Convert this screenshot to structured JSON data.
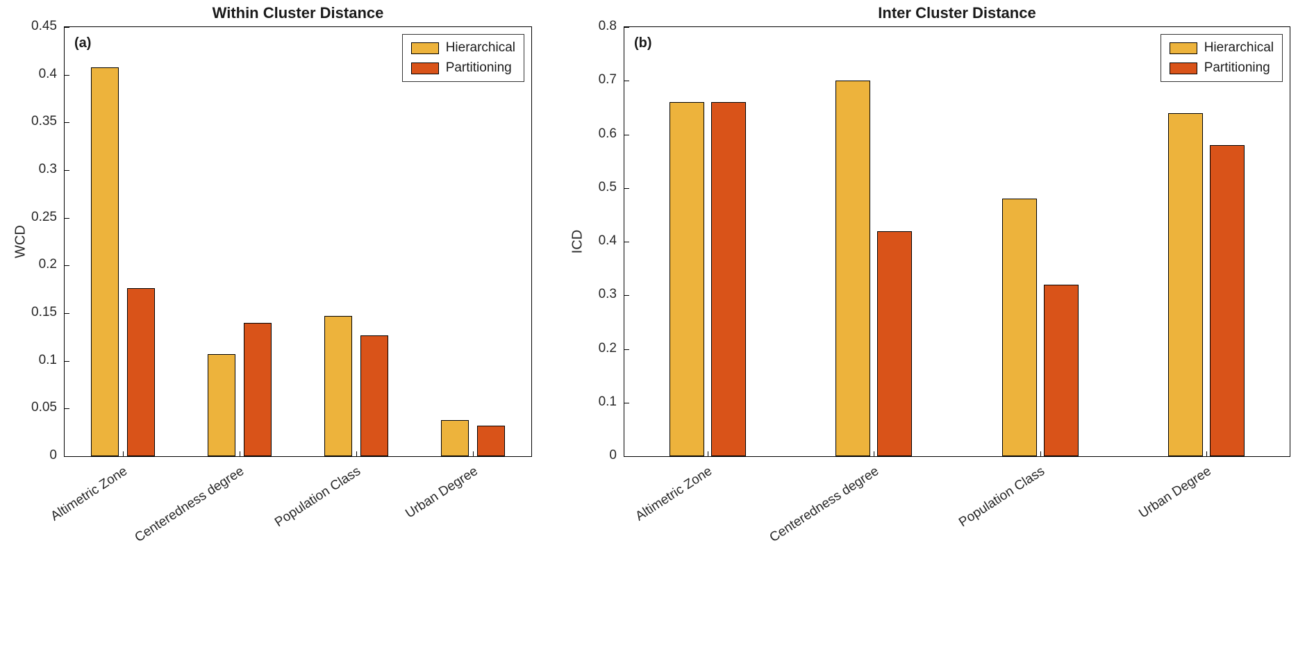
{
  "colors": {
    "hierarchical": "#EDB33C",
    "partitioning": "#D95319",
    "bar_edge": "#000000"
  },
  "chart_data": [
    {
      "type": "bar",
      "panel_label": "(a)",
      "title": "Within Cluster Distance",
      "ylabel": "WCD",
      "ylim": [
        0,
        0.45
      ],
      "grid": false,
      "legend_position": "top-right",
      "legend_entries": [
        "Hierarchical",
        "Partitioning"
      ],
      "categories": [
        "Altimetric Zone",
        "Centeredness degree",
        "Population Class",
        "Urban Degree"
      ],
      "ytick_values": [
        0,
        0.05,
        0.1,
        0.15,
        0.2,
        0.25,
        0.3,
        0.35,
        0.4,
        0.45
      ],
      "ytick_labels": [
        "0",
        "0.05",
        "0.1",
        "0.15",
        "0.2",
        "0.25",
        "0.3",
        "0.35",
        "0.4",
        "0.45"
      ],
      "series": [
        {
          "name": "Hierarchical",
          "color_key": "hierarchical",
          "values": [
            0.408,
            0.107,
            0.147,
            0.038
          ]
        },
        {
          "name": "Partitioning",
          "color_key": "partitioning",
          "values": [
            0.176,
            0.14,
            0.127,
            0.032
          ]
        }
      ]
    },
    {
      "type": "bar",
      "panel_label": "(b)",
      "title": "Inter Cluster Distance",
      "ylabel": "ICD",
      "ylim": [
        0,
        0.8
      ],
      "grid": false,
      "legend_position": "top-right",
      "legend_entries": [
        "Hierarchical",
        "Partitioning"
      ],
      "categories": [
        "Altimetric Zone",
        "Centeredness degree",
        "Population Class",
        "Urban Degree"
      ],
      "ytick_values": [
        0,
        0.1,
        0.2,
        0.3,
        0.4,
        0.5,
        0.6,
        0.7,
        0.8
      ],
      "ytick_labels": [
        "0",
        "0.1",
        "0.2",
        "0.3",
        "0.4",
        "0.5",
        "0.6",
        "0.7",
        "0.8"
      ],
      "series": [
        {
          "name": "Hierarchical",
          "color_key": "hierarchical",
          "values": [
            0.66,
            0.7,
            0.48,
            0.64
          ]
        },
        {
          "name": "Partitioning",
          "color_key": "partitioning",
          "values": [
            0.66,
            0.42,
            0.32,
            0.58
          ]
        }
      ]
    }
  ]
}
